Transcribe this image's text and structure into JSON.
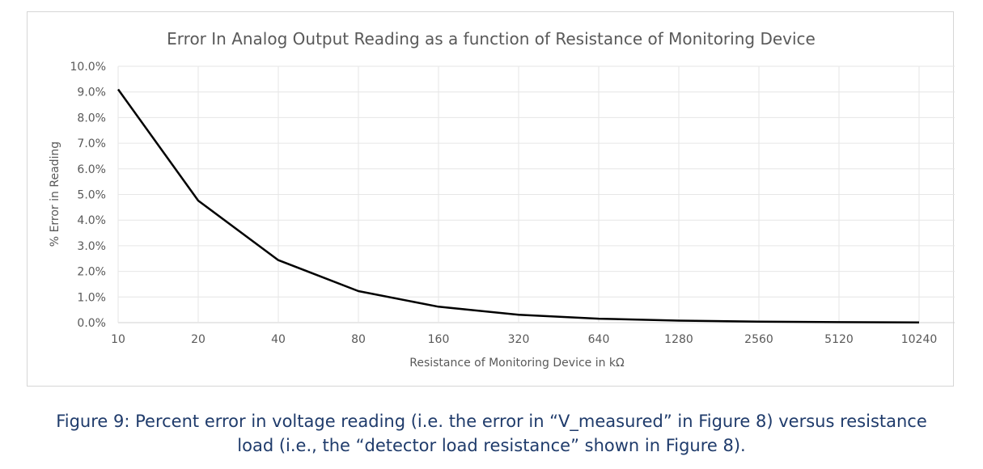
{
  "chart_data": {
    "type": "line",
    "title": "Error In Analog Output Reading as a function of Resistance of Monitoring Device",
    "xlabel": "Resistance of Monitoring Device in kΩ",
    "ylabel": "% Error in Reading",
    "x_scale": "log2",
    "x": [
      10,
      20,
      40,
      80,
      160,
      320,
      640,
      1280,
      2560,
      5120,
      10240
    ],
    "x_tick_labels": [
      "10",
      "20",
      "40",
      "80",
      "160",
      "320",
      "640",
      "1280",
      "2560",
      "5120",
      "10240"
    ],
    "ylim": [
      0,
      10
    ],
    "y_tick_labels": [
      "0.0%",
      "1.0%",
      "2.0%",
      "3.0%",
      "4.0%",
      "5.0%",
      "6.0%",
      "7.0%",
      "8.0%",
      "9.0%",
      "10.0%"
    ],
    "grid": true,
    "series": [
      {
        "name": "",
        "color": "#000000",
        "values": [
          9.1,
          4.76,
          2.44,
          1.23,
          0.62,
          0.31,
          0.156,
          0.078,
          0.039,
          0.02,
          0.01
        ]
      }
    ]
  },
  "caption": {
    "line1": "Figure 9: Percent error in voltage reading (i.e. the error in “V_measured” in Figure 8) versus resistance",
    "line2": "load (i.e., the “detector load resistance” shown in Figure 8)."
  }
}
